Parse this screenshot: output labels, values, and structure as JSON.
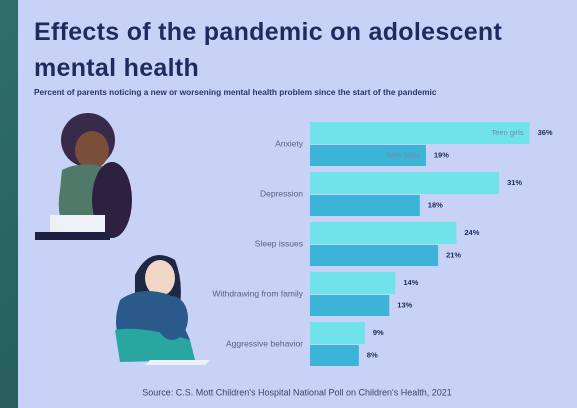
{
  "chart_data": {
    "type": "bar",
    "title": "Effects of the pandemic on adolescent mental health",
    "subtitle": "Percent of parents noticing a new or worsening mental health problem since the start of the pandemic",
    "categories": [
      "Anxiety",
      "Depression",
      "Sleep issues",
      "Withdrawing from family",
      "Aggressive behavior"
    ],
    "series": [
      {
        "name": "Teen girls",
        "color": "#6fe2ea",
        "values": [
          36,
          31,
          24,
          14,
          9
        ],
        "value_labels": [
          "36%",
          "31%",
          "24%",
          "14%",
          "9%"
        ]
      },
      {
        "name": "Teen boys",
        "color": "#3bb4d7",
        "values": [
          19,
          18,
          21,
          13,
          8
        ],
        "value_labels": [
          "19%",
          "18%",
          "21%",
          "13%",
          "8%"
        ]
      }
    ],
    "source": "Source: C.S. Mott Children's Hospital National Poll on Children's Health, 2021"
  }
}
